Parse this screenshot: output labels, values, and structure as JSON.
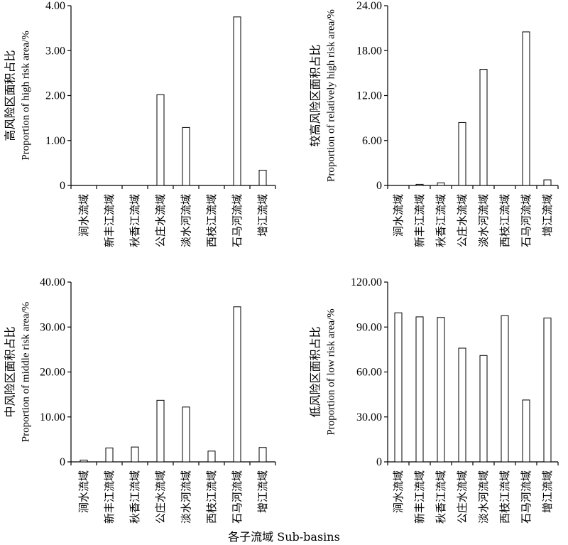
{
  "chart_data": [
    {
      "type": "bar",
      "ylabel_cn": "高风险区面积占比",
      "ylabel_en": "Proportion of high risk area/%",
      "ylim": [
        0,
        4
      ],
      "yticks": [
        "0",
        "1.00",
        "2.00",
        "3.00",
        "4.00"
      ],
      "categories": [
        "涧水流域",
        "新丰江流域",
        "秋香江流域",
        "公庄水流域",
        "淡水河流域",
        "西枝江流域",
        "石马河流域",
        "增江流域"
      ],
      "values": [
        0,
        0,
        0,
        2.02,
        1.29,
        0,
        3.75,
        0.34
      ]
    },
    {
      "type": "bar",
      "ylabel_cn": "较高风险区面积占比",
      "ylabel_en": "Proportion of relatively high risk area/%",
      "ylim": [
        0,
        24
      ],
      "yticks": [
        "0",
        "6.00",
        "12.00",
        "18.00",
        "24.00"
      ],
      "categories": [
        "涧水流域",
        "新丰江流域",
        "秋香江流域",
        "公庄水流域",
        "淡水河流域",
        "西枝江流域",
        "石马河流域",
        "增江流域"
      ],
      "values": [
        0,
        0.15,
        0.35,
        8.4,
        15.5,
        0,
        20.5,
        0.75
      ]
    },
    {
      "type": "bar",
      "ylabel_cn": "中风险区面积占比",
      "ylabel_en": "Proportion of middle risk area/%",
      "ylim": [
        0,
        40
      ],
      "yticks": [
        "0",
        "10.00",
        "20.00",
        "30.00",
        "40.00"
      ],
      "categories": [
        "涧水流域",
        "新丰江流域",
        "秋香江流域",
        "公庄水流域",
        "淡水河流域",
        "西枝江流域",
        "石马河流域",
        "增江流域"
      ],
      "values": [
        0.4,
        3.1,
        3.3,
        13.7,
        12.2,
        2.4,
        34.5,
        3.2
      ]
    },
    {
      "type": "bar",
      "ylabel_cn": "低风险区面积占比",
      "ylabel_en": "Proportion of low risk area/%",
      "ylim": [
        0,
        120
      ],
      "yticks": [
        "0",
        "30.00",
        "60.00",
        "90.00",
        "120.00"
      ],
      "categories": [
        "涧水流域",
        "新丰江流域",
        "秋香江流域",
        "公庄水流域",
        "淡水河流域",
        "西枝江流域",
        "石马河流域",
        "增江流域"
      ],
      "values": [
        99.5,
        96.8,
        96.4,
        75.9,
        71.0,
        97.6,
        41.3,
        96.0
      ]
    }
  ],
  "xlabel": "各子流域 Sub-basins"
}
